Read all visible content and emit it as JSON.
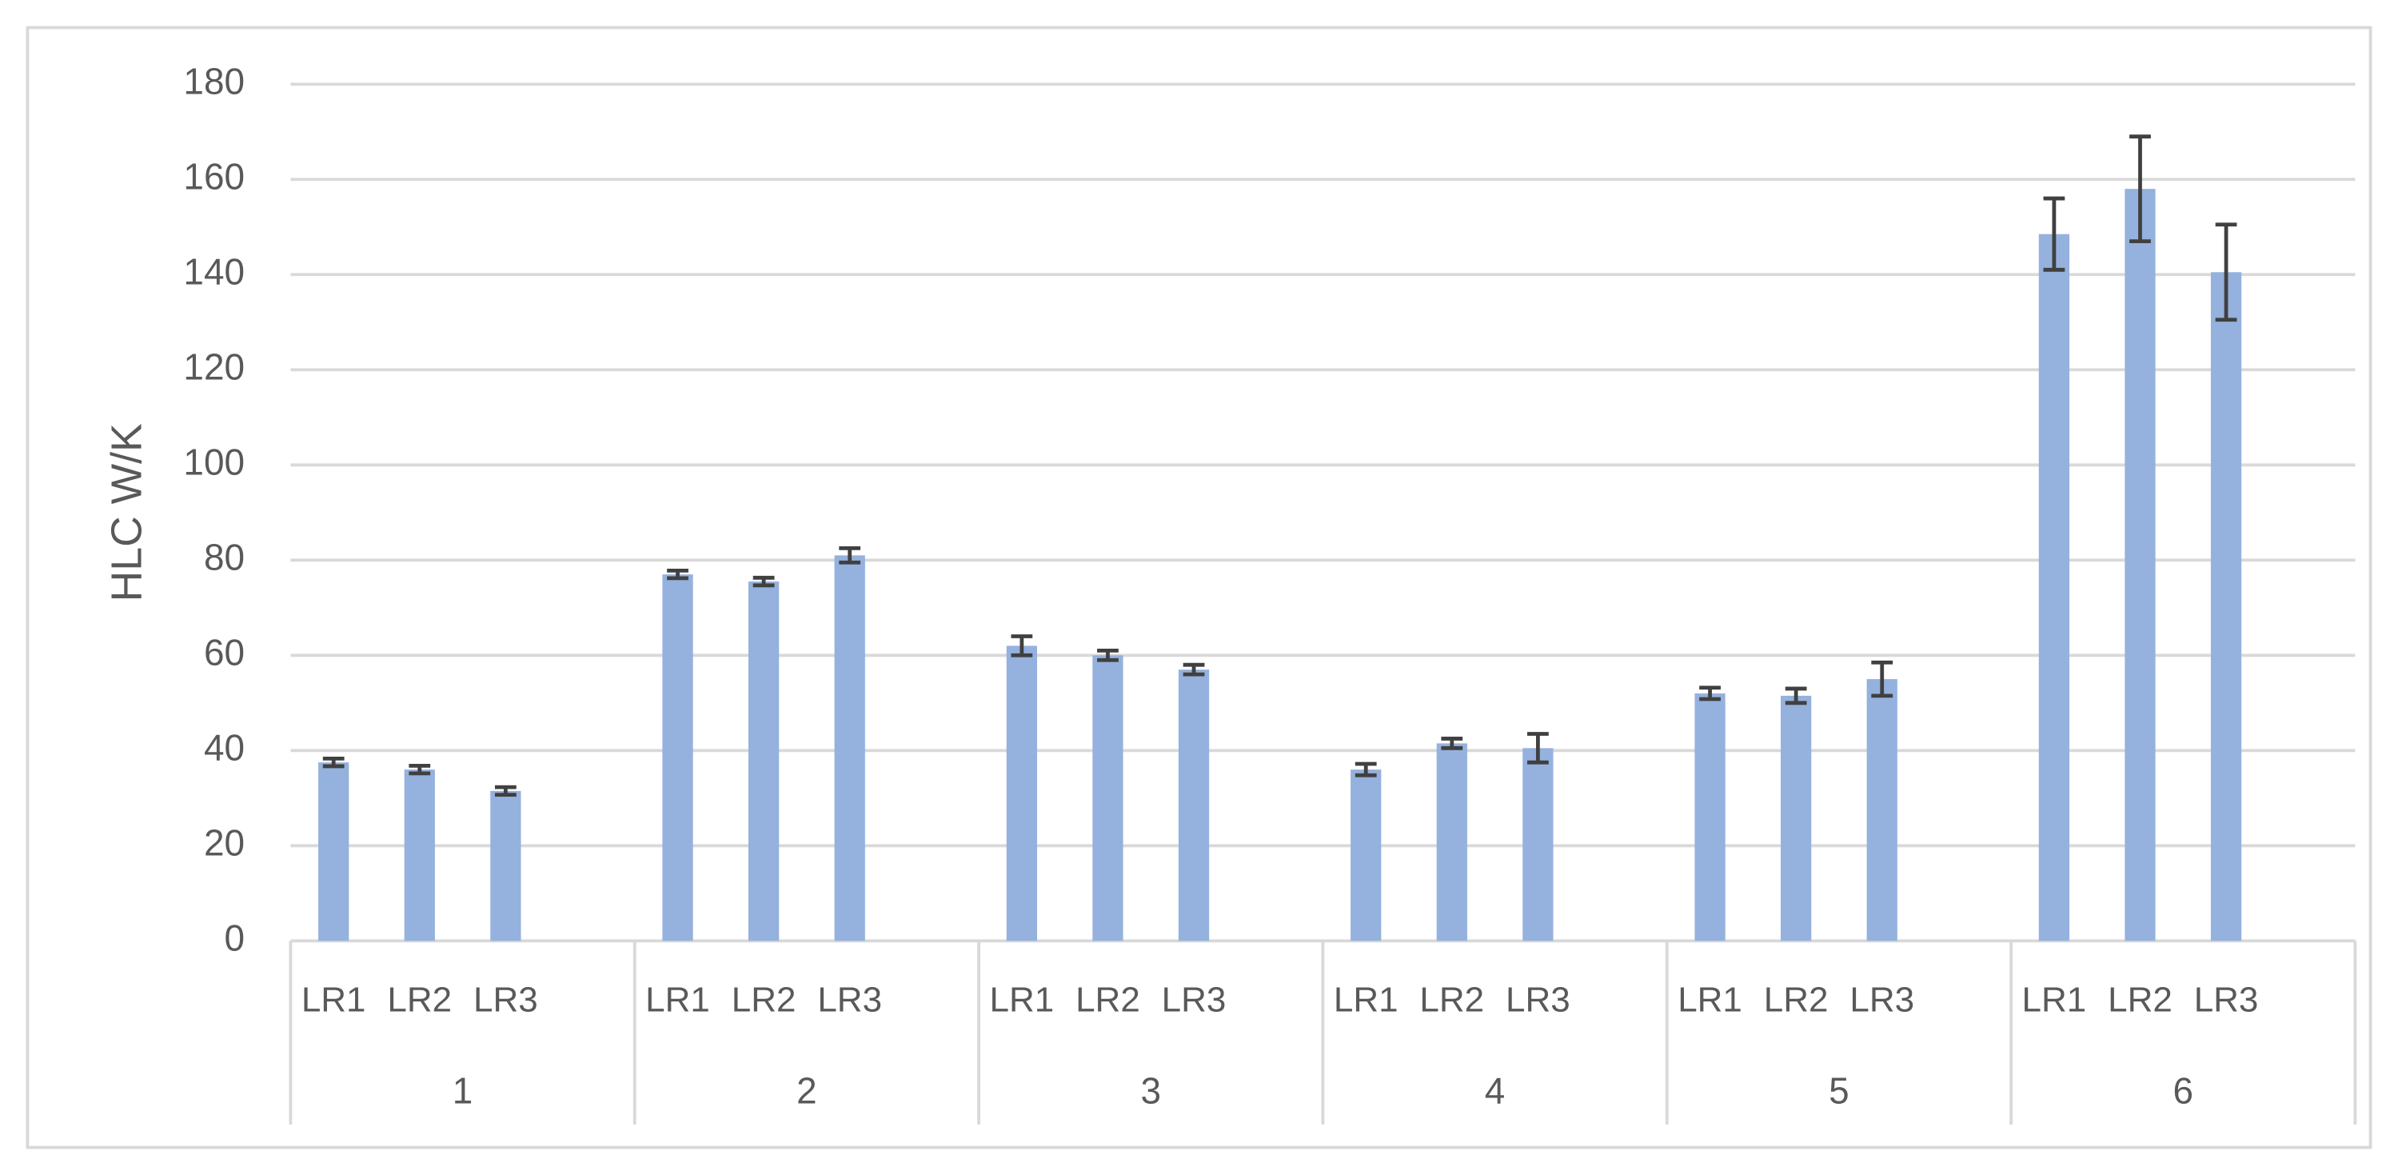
{
  "chart_data": {
    "type": "bar",
    "y_label": "HLC W/K",
    "groups": [
      "1",
      "2",
      "3",
      "4",
      "5",
      "6"
    ],
    "categories": [
      "LR1",
      "LR2",
      "LR3",
      "LR1",
      "LR2",
      "LR3",
      "LR1",
      "LR2",
      "LR3",
      "LR1",
      "LR2",
      "LR3",
      "LR1",
      "LR2",
      "LR3",
      "LR1",
      "LR2",
      "LR3"
    ],
    "values": [
      37.5,
      36,
      31.5,
      77,
      75.5,
      81,
      62,
      60,
      57,
      36,
      41.5,
      40.5,
      52,
      51.5,
      55,
      148.5,
      158,
      140.5
    ],
    "errors": [
      0.8,
      0.8,
      0.8,
      0.8,
      0.8,
      1.5,
      2,
      1,
      1,
      1.2,
      1,
      3,
      1.2,
      1.5,
      3.5,
      7.5,
      11,
      10
    ],
    "color": "#95b1de",
    "error_color": "#404040",
    "ylim": [
      0,
      180
    ],
    "yticks": [
      0,
      20,
      40,
      60,
      80,
      100,
      120,
      140,
      160,
      180
    ],
    "grid": true
  }
}
